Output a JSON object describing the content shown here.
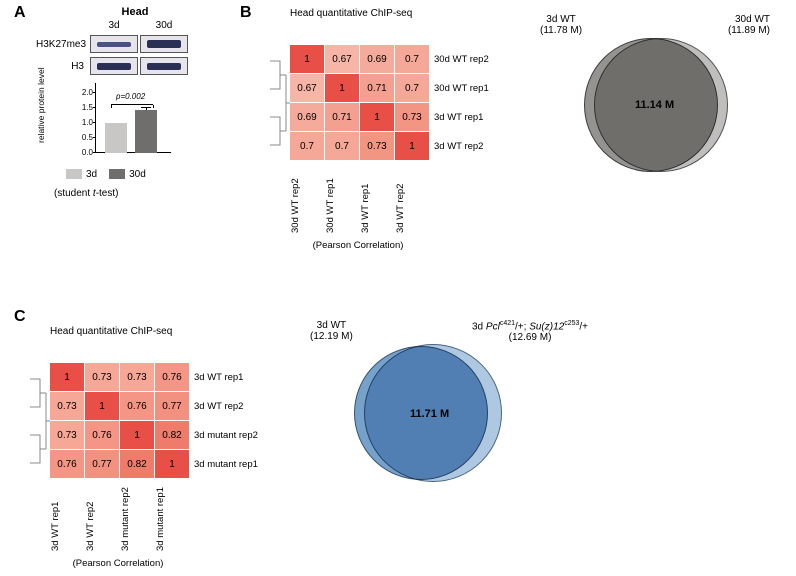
{
  "panelA": {
    "label": "A",
    "head_label": "Head",
    "col1": "3d",
    "col2": "30d",
    "row1": "H3K27me3",
    "row2": "H3",
    "band_colors": {
      "bg": "#e4e0eb",
      "band_dark": "#2a2f55",
      "band_mid": "#4b5085"
    },
    "bar": {
      "ylabel": "relative protein level",
      "ymin": 0.0,
      "ymax": 2.0,
      "ytick_step": 0.5,
      "ticks": [
        "0.0",
        "0.5",
        "1.0",
        "1.5",
        "2.0"
      ],
      "bars": [
        {
          "label": "3d",
          "value": 1.0,
          "err": 0.0,
          "color": "#c9c7c5"
        },
        {
          "label": "30d",
          "value": 1.44,
          "err": 0.06,
          "color": "#6f6e6c"
        }
      ],
      "pval": "p=0.002",
      "bracket_y": 1.6
    },
    "legend": {
      "sw1": "#c9c7c5",
      "l1": "3d",
      "sw2": "#6f6e6c",
      "l2": "30d"
    },
    "test": "(student t-test)",
    "test_italic_part": "t"
  },
  "panelB": {
    "label": "B",
    "title": "Head quantitative ChIP-seq",
    "rows": [
      "30d WT rep2",
      "30d WT rep1",
      "3d WT rep1",
      "3d WT rep2"
    ],
    "cols": [
      "30d WT rep2",
      "30d WT rep1",
      "3d WT rep1",
      "3d WT rep2"
    ],
    "values": [
      [
        1,
        0.67,
        0.69,
        0.7
      ],
      [
        0.67,
        1,
        0.71,
        0.7
      ],
      [
        0.69,
        0.71,
        1,
        0.73
      ],
      [
        0.7,
        0.7,
        0.73,
        1
      ]
    ],
    "colors": {
      "1": "#e84f47",
      "0.73": "#f29583",
      "0.71": "#f4a091",
      "0.7": "#f5a897",
      "0.69": "#f5ab9b",
      "0.67": "#f6b5a6"
    },
    "corr": "(Pearson Correlation)",
    "venn": {
      "left_label": "3d WT",
      "left_n": "(11.78 M)",
      "right_label": "30d WT",
      "right_n": "(11.89 M)",
      "center": "11.14 M",
      "color_left": "#bdbcb9",
      "color_right": "#b4b3b0",
      "color_overlap": "#8f8e8b",
      "stroke": "#333333"
    }
  },
  "panelC": {
    "label": "C",
    "title": "Head quantitative ChIP-seq",
    "rows": [
      "3d WT rep1",
      "3d WT rep2",
      "3d mutant rep2",
      "3d mutant rep1"
    ],
    "cols": [
      "3d WT rep1",
      "3d WT rep2",
      "3d mutant rep2",
      "3d mutant rep1"
    ],
    "values": [
      [
        1,
        0.73,
        0.73,
        0.76
      ],
      [
        0.73,
        1,
        0.76,
        0.77
      ],
      [
        0.73,
        0.76,
        1,
        0.82
      ],
      [
        0.76,
        0.77,
        0.82,
        1
      ]
    ],
    "colors": {
      "1": "#e84f47",
      "0.82": "#ef7b6a",
      "0.77": "#f39181",
      "0.76": "#f49585",
      "0.73": "#f6a796"
    },
    "corr": "(Pearson Correlation)",
    "venn": {
      "left_label": "3d WT",
      "left_n": "(12.19 M)",
      "right_label_html": "3d <i>Pcl</i><sup>c421</sup>/+; <i>Su(z)12</i><sup>c253</sup>/+",
      "right_label": "3d Pcl c421/+; Su(z)12 c253/+",
      "right_n": "(12.69 M)",
      "center": "11.71 M",
      "color_left": "#aec9e3",
      "color_right": "#a0bedd",
      "color_overlap": "#6f9cc8",
      "stroke": "#2a4a66"
    }
  }
}
